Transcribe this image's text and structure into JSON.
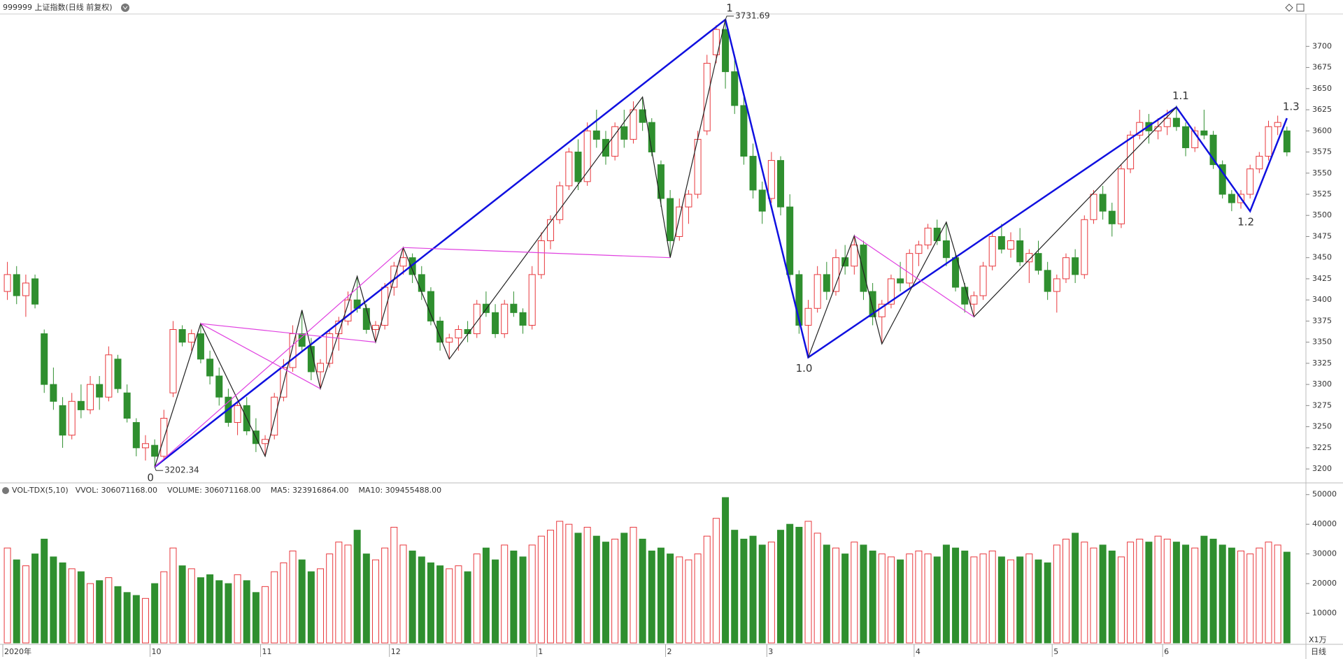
{
  "header": {
    "title": "999999 上证指数(日线 前复权)",
    "period": "日线"
  },
  "chart_data": {
    "type": "candlestick",
    "ohlc": [
      [
        3410,
        3445,
        3400,
        3430
      ],
      [
        3430,
        3440,
        3395,
        3405
      ],
      [
        3405,
        3430,
        3380,
        3420
      ],
      [
        3425,
        3430,
        3390,
        3395
      ],
      [
        3360,
        3365,
        3290,
        3300
      ],
      [
        3300,
        3320,
        3270,
        3280
      ],
      [
        3275,
        3285,
        3225,
        3240
      ],
      [
        3240,
        3290,
        3235,
        3280
      ],
      [
        3280,
        3300,
        3260,
        3270
      ],
      [
        3270,
        3310,
        3265,
        3300
      ],
      [
        3300,
        3310,
        3270,
        3285
      ],
      [
        3285,
        3345,
        3280,
        3335
      ],
      [
        3330,
        3335,
        3290,
        3295
      ],
      [
        3290,
        3300,
        3255,
        3260
      ],
      [
        3255,
        3260,
        3215,
        3225
      ],
      [
        3225,
        3240,
        3210,
        3230
      ],
      [
        3228,
        3235,
        3202.34,
        3215
      ],
      [
        3215,
        3270,
        3210,
        3260
      ],
      [
        3290,
        3375,
        3285,
        3365
      ],
      [
        3365,
        3370,
        3345,
        3350
      ],
      [
        3350,
        3365,
        3340,
        3360
      ],
      [
        3360,
        3372,
        3325,
        3330
      ],
      [
        3330,
        3340,
        3300,
        3310
      ],
      [
        3310,
        3320,
        3275,
        3285
      ],
      [
        3285,
        3295,
        3250,
        3255
      ],
      [
        3255,
        3280,
        3240,
        3275
      ],
      [
        3275,
        3285,
        3240,
        3245
      ],
      [
        3245,
        3260,
        3220,
        3230
      ],
      [
        3230,
        3240,
        3215,
        3235
      ],
      [
        3240,
        3290,
        3235,
        3285
      ],
      [
        3285,
        3330,
        3280,
        3320
      ],
      [
        3320,
        3370,
        3315,
        3360
      ],
      [
        3360,
        3388,
        3340,
        3345
      ],
      [
        3345,
        3355,
        3305,
        3315
      ],
      [
        3315,
        3330,
        3295,
        3325
      ],
      [
        3325,
        3365,
        3320,
        3360
      ],
      [
        3360,
        3380,
        3340,
        3375
      ],
      [
        3375,
        3410,
        3370,
        3400
      ],
      [
        3400,
        3428,
        3385,
        3390
      ],
      [
        3390,
        3395,
        3360,
        3365
      ],
      [
        3365,
        3375,
        3350,
        3370
      ],
      [
        3370,
        3420,
        3365,
        3415
      ],
      [
        3415,
        3445,
        3405,
        3440
      ],
      [
        3440,
        3462,
        3430,
        3450
      ],
      [
        3450,
        3455,
        3420,
        3430
      ],
      [
        3430,
        3440,
        3400,
        3410
      ],
      [
        3410,
        3415,
        3370,
        3375
      ],
      [
        3375,
        3380,
        3340,
        3350
      ],
      [
        3350,
        3360,
        3330,
        3355
      ],
      [
        3355,
        3370,
        3340,
        3365
      ],
      [
        3365,
        3375,
        3350,
        3360
      ],
      [
        3360,
        3400,
        3355,
        3395
      ],
      [
        3395,
        3410,
        3380,
        3385
      ],
      [
        3385,
        3395,
        3355,
        3360
      ],
      [
        3360,
        3400,
        3355,
        3395
      ],
      [
        3395,
        3410,
        3380,
        3385
      ],
      [
        3385,
        3390,
        3360,
        3370
      ],
      [
        3370,
        3440,
        3365,
        3430
      ],
      [
        3430,
        3480,
        3425,
        3470
      ],
      [
        3470,
        3500,
        3460,
        3495
      ],
      [
        3495,
        3540,
        3490,
        3535
      ],
      [
        3535,
        3580,
        3530,
        3575
      ],
      [
        3575,
        3590,
        3530,
        3540
      ],
      [
        3540,
        3610,
        3535,
        3600
      ],
      [
        3600,
        3625,
        3580,
        3590
      ],
      [
        3590,
        3600,
        3560,
        3570
      ],
      [
        3570,
        3610,
        3565,
        3605
      ],
      [
        3605,
        3625,
        3580,
        3590
      ],
      [
        3590,
        3635,
        3585,
        3625
      ],
      [
        3625,
        3640,
        3600,
        3610
      ],
      [
        3610,
        3615,
        3570,
        3575
      ],
      [
        3560,
        3565,
        3510,
        3520
      ],
      [
        3520,
        3530,
        3450,
        3470
      ],
      [
        3475,
        3520,
        3470,
        3510
      ],
      [
        3510,
        3530,
        3490,
        3525
      ],
      [
        3525,
        3600,
        3520,
        3590
      ],
      [
        3600,
        3690,
        3595,
        3680
      ],
      [
        3690,
        3725,
        3680,
        3720
      ],
      [
        3720,
        3731.69,
        3650,
        3670
      ],
      [
        3670,
        3690,
        3620,
        3630
      ],
      [
        3630,
        3640,
        3560,
        3570
      ],
      [
        3570,
        3585,
        3520,
        3530
      ],
      [
        3530,
        3540,
        3490,
        3505
      ],
      [
        3520,
        3575,
        3515,
        3565
      ],
      [
        3565,
        3570,
        3500,
        3510
      ],
      [
        3510,
        3525,
        3420,
        3430
      ],
      [
        3430,
        3435,
        3360,
        3370
      ],
      [
        3370,
        3400,
        3332,
        3390
      ],
      [
        3390,
        3440,
        3385,
        3430
      ],
      [
        3430,
        3445,
        3400,
        3410
      ],
      [
        3410,
        3460,
        3405,
        3450
      ],
      [
        3450,
        3465,
        3430,
        3440
      ],
      [
        3440,
        3476,
        3430,
        3465
      ],
      [
        3465,
        3470,
        3400,
        3410
      ],
      [
        3410,
        3420,
        3370,
        3380
      ],
      [
        3380,
        3400,
        3348,
        3395
      ],
      [
        3395,
        3430,
        3390,
        3425
      ],
      [
        3425,
        3445,
        3410,
        3420
      ],
      [
        3420,
        3460,
        3415,
        3455
      ],
      [
        3455,
        3470,
        3440,
        3465
      ],
      [
        3465,
        3490,
        3460,
        3485
      ],
      [
        3485,
        3495,
        3465,
        3470
      ],
      [
        3470,
        3492,
        3440,
        3450
      ],
      [
        3450,
        3455,
        3410,
        3415
      ],
      [
        3415,
        3420,
        3385,
        3395
      ],
      [
        3395,
        3410,
        3380,
        3405
      ],
      [
        3405,
        3445,
        3400,
        3440
      ],
      [
        3440,
        3480,
        3435,
        3475
      ],
      [
        3475,
        3490,
        3455,
        3460
      ],
      [
        3460,
        3480,
        3450,
        3470
      ],
      [
        3470,
        3485,
        3440,
        3445
      ],
      [
        3445,
        3460,
        3420,
        3455
      ],
      [
        3455,
        3470,
        3430,
        3435
      ],
      [
        3435,
        3445,
        3400,
        3410
      ],
      [
        3410,
        3430,
        3385,
        3425
      ],
      [
        3425,
        3455,
        3420,
        3450
      ],
      [
        3450,
        3460,
        3420,
        3430
      ],
      [
        3430,
        3500,
        3425,
        3495
      ],
      [
        3495,
        3530,
        3490,
        3525
      ],
      [
        3525,
        3535,
        3495,
        3505
      ],
      [
        3505,
        3515,
        3475,
        3490
      ],
      [
        3490,
        3560,
        3485,
        3555
      ],
      [
        3555,
        3600,
        3550,
        3595
      ],
      [
        3595,
        3625,
        3590,
        3610
      ],
      [
        3610,
        3620,
        3585,
        3600
      ],
      [
        3600,
        3615,
        3590,
        3605
      ],
      [
        3605,
        3625,
        3595,
        3615
      ],
      [
        3615,
        3630,
        3600,
        3605
      ],
      [
        3605,
        3610,
        3570,
        3580
      ],
      [
        3580,
        3605,
        3575,
        3600
      ],
      [
        3600,
        3625,
        3590,
        3595
      ],
      [
        3595,
        3600,
        3555,
        3560
      ],
      [
        3560,
        3565,
        3520,
        3525
      ],
      [
        3525,
        3530,
        3505,
        3515
      ],
      [
        3515,
        3530,
        3508,
        3525
      ],
      [
        3525,
        3560,
        3520,
        3555
      ],
      [
        3555,
        3575,
        3550,
        3570
      ],
      [
        3570,
        3612,
        3565,
        3605
      ],
      [
        3605,
        3618,
        3595,
        3610
      ],
      [
        3600,
        3605,
        3570,
        3575
      ]
    ],
    "up_color": "#e8383d",
    "down_color": "#2f8f2f",
    "ylim": [
      3186,
      3735
    ],
    "yticks": [
      3200,
      3225,
      3250,
      3275,
      3300,
      3325,
      3350,
      3375,
      3400,
      3425,
      3450,
      3475,
      3500,
      3525,
      3550,
      3575,
      3600,
      3625,
      3650,
      3675,
      3700
    ],
    "xlim": [
      0,
      139
    ],
    "xticks": [
      {
        "value": 0,
        "label": "2020年"
      },
      {
        "value": 16,
        "label": "10"
      },
      {
        "value": 28,
        "label": "11"
      },
      {
        "value": 42,
        "label": "12"
      },
      {
        "value": 58,
        "label": "1"
      },
      {
        "value": 72,
        "label": "2"
      },
      {
        "value": 83,
        "label": "3"
      },
      {
        "value": 99,
        "label": "4"
      },
      {
        "value": 114,
        "label": "5"
      },
      {
        "value": 126,
        "label": "6"
      }
    ],
    "overlays": [
      {
        "color": "#1010e0",
        "points": [
          [
            16,
            3202.34
          ],
          [
            78,
            3731.69
          ],
          [
            87,
            3332
          ],
          [
            127,
            3628
          ],
          [
            135,
            3505
          ],
          [
            139,
            3615
          ]
        ]
      },
      {
        "color": "#222222",
        "points": [
          [
            16,
            3202.34
          ],
          [
            21,
            3372
          ],
          [
            28,
            3215
          ],
          [
            32,
            3388
          ],
          [
            34,
            3295
          ],
          [
            38,
            3428
          ],
          [
            40,
            3350
          ],
          [
            43,
            3462
          ],
          [
            48,
            3330
          ],
          [
            69,
            3640
          ],
          [
            72,
            3450
          ],
          [
            78,
            3731.69
          ]
        ]
      },
      {
        "color": "#222222",
        "points": [
          [
            87,
            3332
          ],
          [
            92,
            3476
          ],
          [
            95,
            3348
          ],
          [
            102,
            3492
          ],
          [
            105,
            3380
          ],
          [
            127,
            3628
          ]
        ]
      },
      {
        "color": "#e040e0",
        "points": [
          [
            16,
            3202.34
          ],
          [
            43,
            3462
          ],
          [
            72,
            3450
          ]
        ]
      },
      {
        "color": "#e040e0",
        "points": [
          [
            34,
            3295
          ],
          [
            21,
            3372
          ],
          [
            40,
            3350
          ]
        ]
      },
      {
        "color": "#e040e0",
        "points": [
          [
            92,
            3476
          ],
          [
            105,
            3380
          ]
        ]
      }
    ],
    "wave_labels": [
      "0",
      "1",
      "1.0",
      "1.1",
      "1.2",
      "1.3"
    ],
    "high_label": "3731.69",
    "low_label": "3202.34",
    "volume": {
      "type": "bar",
      "title": "VOL-TDX(5,10)",
      "legend": [
        {
          "label": "VVOL: 306071168.00",
          "color": "#333333"
        },
        {
          "label": "VOLUME: 306071168.00",
          "color": "#1e88c8"
        },
        {
          "label": "MA5: 323916864.00",
          "color": "#1e88c8"
        },
        {
          "label": "MA10: 309455488.00",
          "color": "#a0108a"
        }
      ],
      "values": [
        32000,
        28000,
        26000,
        30000,
        35000,
        29000,
        27000,
        25000,
        24000,
        20000,
        21000,
        22000,
        19000,
        17000,
        16000,
        15000,
        20000,
        24000,
        32000,
        26000,
        25000,
        22000,
        23000,
        21000,
        20000,
        23000,
        21000,
        17000,
        19000,
        24000,
        27000,
        31000,
        28000,
        24000,
        25000,
        30000,
        34000,
        33000,
        38000,
        30000,
        28000,
        32000,
        39000,
        33000,
        31000,
        29000,
        27000,
        26000,
        25000,
        26000,
        24000,
        30000,
        32000,
        28000,
        33000,
        31000,
        29000,
        33000,
        36000,
        38000,
        41000,
        40000,
        37000,
        39000,
        36000,
        34000,
        35000,
        37000,
        39000,
        35000,
        31000,
        32000,
        30000,
        29000,
        28000,
        30000,
        36000,
        42000,
        49000,
        38000,
        35000,
        36000,
        33000,
        34000,
        38000,
        40000,
        39000,
        41000,
        37000,
        33000,
        32000,
        30000,
        34000,
        33000,
        31000,
        30000,
        29000,
        28000,
        30000,
        31000,
        30000,
        29000,
        33000,
        32000,
        31000,
        29000,
        30000,
        31000,
        29000,
        28000,
        29000,
        30000,
        28000,
        27000,
        33000,
        35000,
        37000,
        34000,
        32000,
        33000,
        31000,
        29000,
        34000,
        35000,
        34000,
        36000,
        35000,
        34000,
        33000,
        32000,
        36000,
        35000,
        33000,
        32000,
        31000,
        30000,
        32000,
        34000,
        33000,
        30607
      ],
      "ylim": [
        0,
        53000
      ],
      "yticks": [
        10000,
        20000,
        30000,
        40000,
        50000
      ],
      "unit": "X1万"
    }
  }
}
